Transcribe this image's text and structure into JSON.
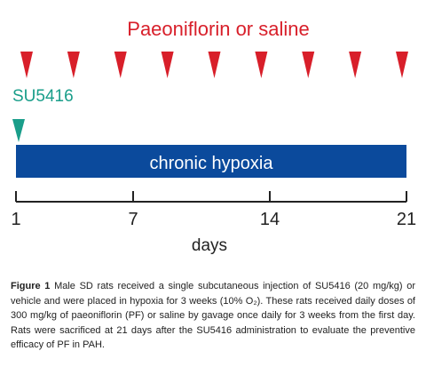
{
  "diagram": {
    "treatment_label": "Paeoniflorin or saline",
    "injection_label": "SU5416",
    "bar_label": "chronic hypoxia",
    "axis_label": "days",
    "ticks": [
      "1",
      "7",
      "14",
      "21"
    ],
    "daily_dose_marker_count": 9,
    "colors": {
      "treatment": "#d81f2a",
      "injection": "#1a9e8a",
      "bar": "#0b4a9c",
      "bar_text": "#ffffff",
      "axis": "#222222"
    }
  },
  "caption": {
    "label": "Figure 1",
    "text": "Male SD rats received a single subcutaneous injection of SU5416 (20 mg/kg) or vehicle and were placed in hypoxia for 3 weeks (10% O₂). These rats received daily doses of 300 mg/kg of paeoniflorin (PF) or saline by gavage once daily for 3 weeks from the first day. Rats were sacrificed at 21 days after the SU5416 administration to evaluate the preventive efficacy of PF in PAH."
  }
}
